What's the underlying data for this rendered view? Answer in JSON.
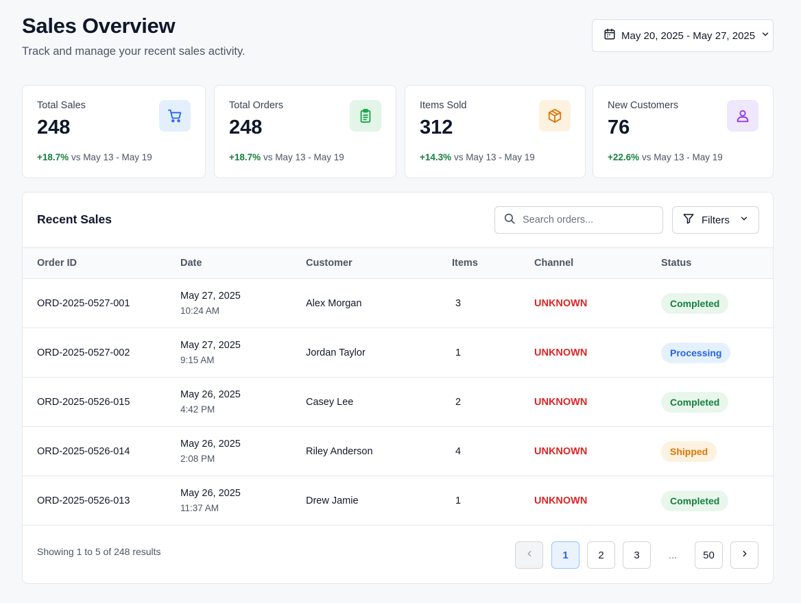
{
  "header": {
    "title": "Sales Overview",
    "subtitle": "Track and manage your recent sales activity."
  },
  "date_range": {
    "label": "May 20, 2025 - May 27, 2025"
  },
  "stats": [
    {
      "label": "Total Sales",
      "value": "248",
      "change": "+18.7%",
      "comparison": "vs May 13 - May 19",
      "icon": "cart-icon",
      "icon_bg": "#e3effc",
      "icon_color": "#2563eb"
    },
    {
      "label": "Total Orders",
      "value": "248",
      "change": "+18.7%",
      "comparison": "vs May 13 - May 19",
      "icon": "clipboard-icon",
      "icon_bg": "#e3f4e8",
      "icon_color": "#16a34a"
    },
    {
      "label": "Items Sold",
      "value": "312",
      "change": "+14.3%",
      "comparison": "vs May 13 - May 19",
      "icon": "box-icon",
      "icon_bg": "#fdf2df",
      "icon_color": "#d97706"
    },
    {
      "label": "New Customers",
      "value": "76",
      "change": "+22.6%",
      "comparison": "vs May 13 - May 19",
      "icon": "user-icon",
      "icon_bg": "#efe7fb",
      "icon_color": "#9333ea"
    }
  ],
  "recent_sales": {
    "title": "Recent Sales",
    "search_placeholder": "Search orders...",
    "filters_label": "Filters",
    "columns": [
      "Order ID",
      "Date",
      "Customer",
      "Items",
      "Channel",
      "Status"
    ],
    "rows": [
      {
        "order_id": "ORD-2025-0527-001",
        "date": "May 27, 2025",
        "time": "10:24 AM",
        "customer": "Alex Morgan",
        "items": "3",
        "channel": "UNKNOWN",
        "status": "Completed",
        "status_type": "completed"
      },
      {
        "order_id": "ORD-2025-0527-002",
        "date": "May 27, 2025",
        "time": "9:15 AM",
        "customer": "Jordan Taylor",
        "items": "1",
        "channel": "UNKNOWN",
        "status": "Processing",
        "status_type": "processing"
      },
      {
        "order_id": "ORD-2025-0526-015",
        "date": "May 26, 2025",
        "time": "4:42 PM",
        "customer": "Casey Lee",
        "items": "2",
        "channel": "UNKNOWN",
        "status": "Completed",
        "status_type": "completed"
      },
      {
        "order_id": "ORD-2025-0526-014",
        "date": "May 26, 2025",
        "time": "2:08 PM",
        "customer": "Riley Anderson",
        "items": "4",
        "channel": "UNKNOWN",
        "status": "Shipped",
        "status_type": "shipped"
      },
      {
        "order_id": "ORD-2025-0526-013",
        "date": "May 26, 2025",
        "time": "11:37 AM",
        "customer": "Drew Jamie",
        "items": "1",
        "channel": "UNKNOWN",
        "status": "Completed",
        "status_type": "completed"
      }
    ]
  },
  "pagination": {
    "summary": "Showing 1 to 5 of 248 results",
    "pages": [
      "1",
      "2",
      "3",
      "...",
      "50"
    ],
    "current": "1"
  }
}
